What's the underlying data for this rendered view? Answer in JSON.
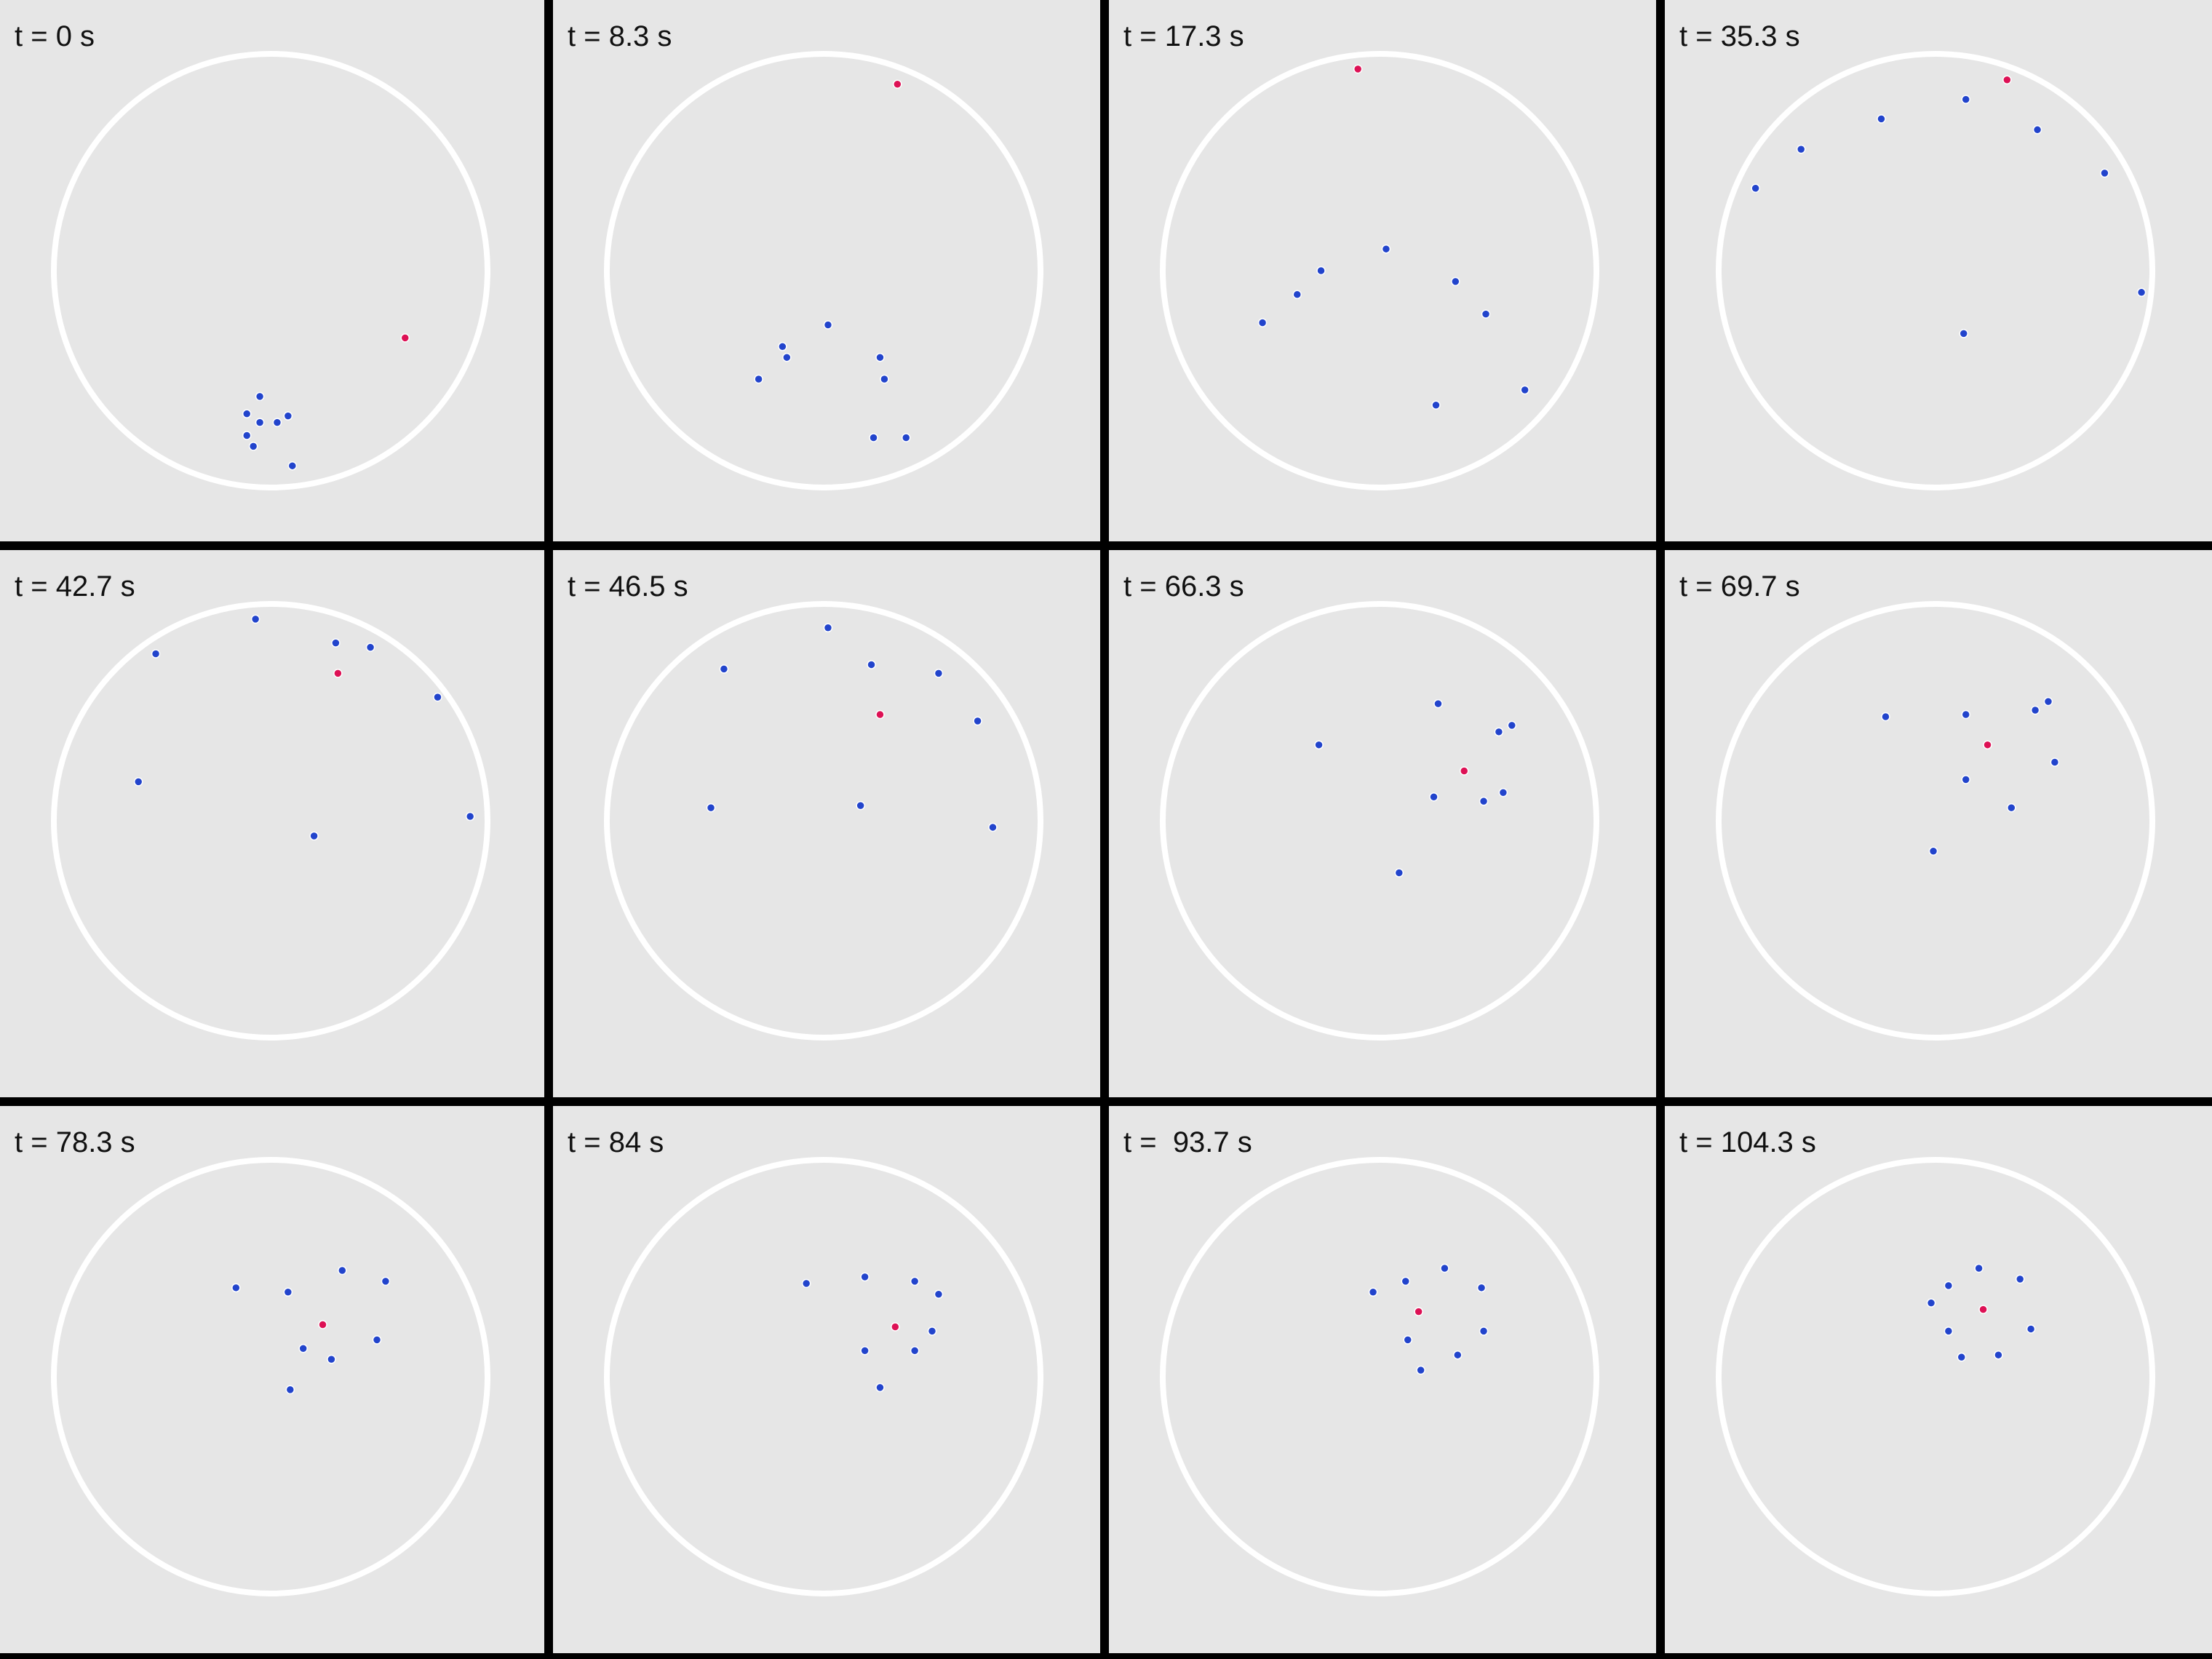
{
  "colors": {
    "background": "#e6e6e6",
    "separator": "#000000",
    "arena": "#ffffff",
    "follower": "#2244cc",
    "leader": "#dd1155"
  },
  "panels": [
    {
      "label": "t = 0 s",
      "leader": [
        0.62,
        0.31
      ],
      "followers": [
        [
          -0.05,
          0.58
        ],
        [
          -0.11,
          0.66
        ],
        [
          -0.05,
          0.7
        ],
        [
          0.03,
          0.7
        ],
        [
          0.08,
          0.67
        ],
        [
          -0.11,
          0.76
        ],
        [
          -0.08,
          0.81
        ],
        [
          0.1,
          0.9
        ]
      ]
    },
    {
      "label": "t = 8.3 s",
      "leader": [
        0.34,
        -0.86
      ],
      "followers": [
        [
          0.02,
          0.25
        ],
        [
          -0.19,
          0.35
        ],
        [
          -0.17,
          0.4
        ],
        [
          -0.3,
          0.5
        ],
        [
          0.26,
          0.4
        ],
        [
          0.28,
          0.5
        ],
        [
          0.23,
          0.77
        ],
        [
          0.38,
          0.77
        ]
      ]
    },
    {
      "label": "t = 17.3 s",
      "leader": [
        -0.1,
        -0.93
      ],
      "followers": [
        [
          0.03,
          -0.1
        ],
        [
          -0.27,
          0.0
        ],
        [
          -0.38,
          0.11
        ],
        [
          -0.54,
          0.24
        ],
        [
          0.35,
          0.05
        ],
        [
          0.49,
          0.2
        ],
        [
          0.67,
          0.55
        ],
        [
          0.26,
          0.62
        ]
      ]
    },
    {
      "label": "t = 35.3 s",
      "leader": [
        0.33,
        -0.88
      ],
      "followers": [
        [
          0.14,
          -0.79
        ],
        [
          0.47,
          -0.65
        ],
        [
          0.78,
          -0.45
        ],
        [
          0.95,
          0.1
        ],
        [
          -0.25,
          -0.7
        ],
        [
          -0.62,
          -0.56
        ],
        [
          -0.83,
          -0.38
        ],
        [
          0.13,
          0.29
        ]
      ]
    },
    {
      "label": "t = 42.7 s",
      "leader": [
        0.31,
        -0.68
      ],
      "followers": [
        [
          -0.07,
          -0.93
        ],
        [
          -0.53,
          -0.77
        ],
        [
          0.3,
          -0.82
        ],
        [
          0.46,
          -0.8
        ],
        [
          0.77,
          -0.57
        ],
        [
          0.92,
          -0.02
        ],
        [
          -0.61,
          -0.18
        ],
        [
          0.2,
          0.07
        ]
      ]
    },
    {
      "label": "t = 46.5 s",
      "leader": [
        0.26,
        -0.49
      ],
      "followers": [
        [
          0.02,
          -0.89
        ],
        [
          0.22,
          -0.72
        ],
        [
          0.53,
          -0.68
        ],
        [
          -0.46,
          -0.7
        ],
        [
          0.71,
          -0.46
        ],
        [
          0.78,
          0.03
        ],
        [
          -0.52,
          -0.06
        ],
        [
          0.17,
          -0.07
        ]
      ]
    },
    {
      "label": "t = 66.3 s",
      "leader": [
        0.39,
        -0.23
      ],
      "followers": [
        [
          0.27,
          -0.54
        ],
        [
          0.55,
          -0.41
        ],
        [
          0.61,
          -0.44
        ],
        [
          -0.28,
          -0.35
        ],
        [
          0.25,
          -0.11
        ],
        [
          0.48,
          -0.09
        ],
        [
          0.57,
          -0.13
        ],
        [
          0.09,
          0.24
        ]
      ]
    },
    {
      "label": "t = 69.7 s",
      "leader": [
        0.24,
        -0.35
      ],
      "followers": [
        [
          0.14,
          -0.49
        ],
        [
          -0.23,
          -0.48
        ],
        [
          0.46,
          -0.51
        ],
        [
          0.52,
          -0.55
        ],
        [
          0.55,
          -0.27
        ],
        [
          0.14,
          -0.19
        ],
        [
          0.35,
          -0.06
        ],
        [
          -0.01,
          0.14
        ]
      ]
    },
    {
      "label": "t = 78.3 s",
      "leader": [
        0.24,
        -0.24
      ],
      "followers": [
        [
          -0.16,
          -0.41
        ],
        [
          0.08,
          -0.39
        ],
        [
          0.33,
          -0.49
        ],
        [
          0.53,
          -0.44
        ],
        [
          0.49,
          -0.17
        ],
        [
          0.15,
          -0.13
        ],
        [
          0.28,
          -0.08
        ],
        [
          0.09,
          0.06
        ]
      ]
    },
    {
      "label": "t = 84 s",
      "leader": [
        0.33,
        -0.23
      ],
      "followers": [
        [
          -0.08,
          -0.43
        ],
        [
          0.19,
          -0.46
        ],
        [
          0.42,
          -0.44
        ],
        [
          0.53,
          -0.38
        ],
        [
          0.5,
          -0.21
        ],
        [
          0.19,
          -0.12
        ],
        [
          0.42,
          -0.12
        ],
        [
          0.26,
          0.05
        ]
      ]
    },
    {
      "label": "t =  93.7 s",
      "leader": [
        0.18,
        -0.3
      ],
      "followers": [
        [
          -0.03,
          -0.39
        ],
        [
          0.12,
          -0.44
        ],
        [
          0.3,
          -0.5
        ],
        [
          0.47,
          -0.41
        ],
        [
          0.48,
          -0.21
        ],
        [
          0.13,
          -0.17
        ],
        [
          0.36,
          -0.1
        ],
        [
          0.19,
          -0.03
        ]
      ]
    },
    {
      "label": "t = 104.3 s",
      "leader": [
        0.22,
        -0.31
      ],
      "followers": [
        [
          0.2,
          -0.5
        ],
        [
          0.06,
          -0.42
        ],
        [
          0.39,
          -0.45
        ],
        [
          -0.02,
          -0.34
        ],
        [
          0.06,
          -0.21
        ],
        [
          0.44,
          -0.22
        ],
        [
          0.12,
          -0.09
        ],
        [
          0.29,
          -0.1
        ]
      ]
    }
  ]
}
